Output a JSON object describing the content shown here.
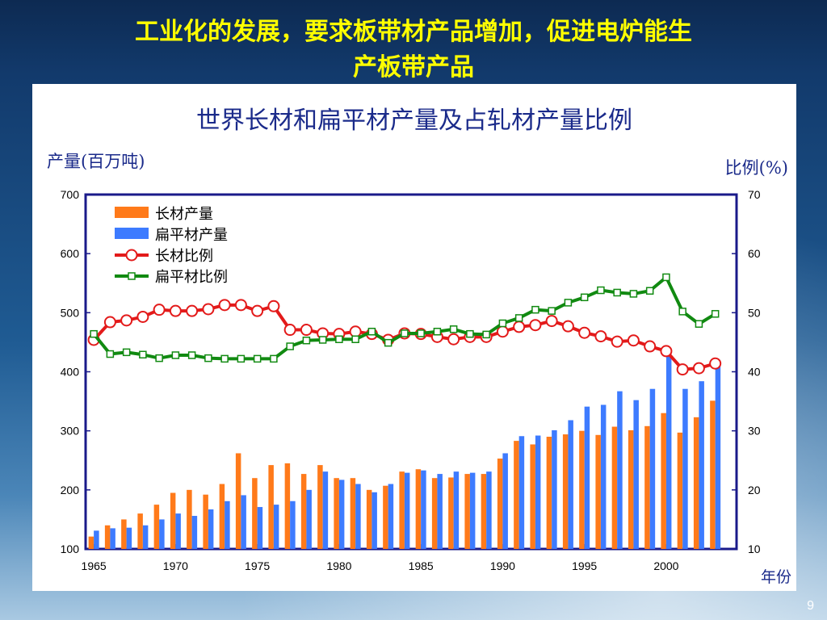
{
  "slide": {
    "title_line1": "工业化的发展，要求板带材产品增加，促进电炉能生",
    "title_line2": "产板带产品",
    "page_number": "9"
  },
  "chart_data": {
    "type": "bar",
    "title": "世界长材和扁平材产量及占轧材产量比例",
    "ylabel": "产量(百万吨)",
    "y2label": "比例(%)",
    "xlabel": "年份",
    "ylim": [
      100,
      700
    ],
    "y2lim": [
      10,
      70
    ],
    "yticks": [
      100,
      200,
      300,
      400,
      500,
      600,
      700
    ],
    "y2ticks": [
      10,
      20,
      30,
      40,
      50,
      60,
      70
    ],
    "xticks": [
      1965,
      1970,
      1975,
      1980,
      1985,
      1990,
      1995,
      2000
    ],
    "x": [
      1965,
      1966,
      1967,
      1968,
      1969,
      1970,
      1971,
      1972,
      1973,
      1974,
      1975,
      1976,
      1977,
      1978,
      1979,
      1980,
      1981,
      1982,
      1983,
      1984,
      1985,
      1986,
      1987,
      1988,
      1989,
      1990,
      1991,
      1992,
      1993,
      1994,
      1995,
      1996,
      1997,
      1998,
      1999,
      2000,
      2001,
      2002,
      2003
    ],
    "legend_position": "top-left",
    "grid": false,
    "series": [
      {
        "name": "长材产量",
        "kind": "bar",
        "axis": "left",
        "color": "#ff7a1a",
        "values": [
          121,
          140,
          150,
          160,
          175,
          195,
          200,
          192,
          210,
          262,
          220,
          242,
          245,
          227,
          242,
          220,
          220,
          200,
          207,
          231,
          235,
          220,
          221,
          227,
          227,
          253,
          283,
          277,
          290,
          294,
          300,
          293,
          307,
          301,
          308,
          330,
          297,
          323,
          351
        ]
      },
      {
        "name": "扁平材产量",
        "kind": "bar",
        "axis": "left",
        "color": "#3d7bff",
        "values": [
          131,
          135,
          136,
          140,
          150,
          160,
          156,
          167,
          181,
          191,
          171,
          175,
          181,
          200,
          231,
          217,
          210,
          196,
          210,
          229,
          233,
          227,
          231,
          229,
          231,
          262,
          291,
          292,
          301,
          318,
          341,
          344,
          367,
          352,
          371,
          428,
          371,
          384,
          420
        ]
      },
      {
        "name": "长材比例",
        "kind": "line",
        "axis": "right",
        "color": "#e31a1a",
        "marker": "circle",
        "values": [
          45.4,
          48.4,
          48.7,
          49.3,
          50.5,
          50.3,
          50.3,
          50.6,
          51.3,
          51.3,
          50.3,
          51.1,
          47.1,
          47.1,
          46.5,
          46.4,
          46.8,
          46.4,
          45.4,
          46.5,
          46.4,
          45.9,
          45.5,
          45.9,
          45.9,
          46.8,
          47.6,
          47.9,
          48.6,
          47.7,
          46.6,
          46.0,
          45.1,
          45.3,
          44.3,
          43.5,
          40.4,
          40.6,
          41.4
        ]
      },
      {
        "name": "扁平材比例",
        "kind": "line",
        "axis": "right",
        "color": "#118a11",
        "marker": "square",
        "values": [
          46.4,
          43.0,
          43.3,
          42.9,
          42.3,
          42.8,
          42.8,
          42.3,
          42.2,
          42.2,
          42.2,
          42.2,
          44.3,
          45.3,
          45.4,
          45.5,
          45.5,
          46.8,
          44.9,
          46.5,
          46.5,
          46.8,
          47.2,
          46.4,
          46.3,
          48.2,
          49.1,
          50.5,
          50.3,
          51.7,
          52.6,
          53.8,
          53.4,
          53.2,
          53.7,
          56.0,
          50.2,
          48.1,
          49.8
        ]
      }
    ]
  }
}
